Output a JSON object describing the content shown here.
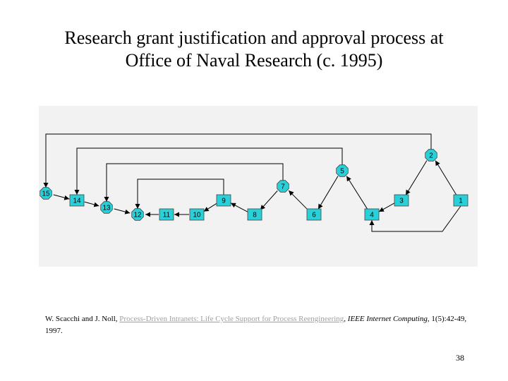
{
  "slide": {
    "title_line1": "Research grant justification and approval process at",
    "title_line2": "Office of Naval Research (c. 1995)",
    "page_number": "38"
  },
  "citation": {
    "authors": "W. Scacchi and J. Noll,",
    "link_text": "Process-Driven Intranets: Life Cycle Support for Process Reengineering",
    "separator": ",",
    "journal": "IEEE Internet Computing",
    "details": ", 1(5):42-49, 1997."
  },
  "diagram": {
    "node_color": "#2ad0d8",
    "nodes": [
      {
        "id": "n15",
        "label": "15",
        "shape": "octagon"
      },
      {
        "id": "n14",
        "label": "14",
        "shape": "rect"
      },
      {
        "id": "n13",
        "label": "13",
        "shape": "octagon"
      },
      {
        "id": "n12",
        "label": "12",
        "shape": "octagon"
      },
      {
        "id": "n11",
        "label": "11",
        "shape": "rect"
      },
      {
        "id": "n10",
        "label": "10",
        "shape": "rect"
      },
      {
        "id": "n9",
        "label": "9",
        "shape": "rect"
      },
      {
        "id": "n8",
        "label": "8",
        "shape": "rect"
      },
      {
        "id": "n7",
        "label": "7",
        "shape": "octagon"
      },
      {
        "id": "n6",
        "label": "6",
        "shape": "rect"
      },
      {
        "id": "n5",
        "label": "5",
        "shape": "octagon"
      },
      {
        "id": "n4",
        "label": "4",
        "shape": "rect"
      },
      {
        "id": "n3",
        "label": "3",
        "shape": "rect"
      },
      {
        "id": "n2",
        "label": "2",
        "shape": "octagon"
      },
      {
        "id": "n1",
        "label": "1",
        "shape": "rect"
      }
    ]
  }
}
